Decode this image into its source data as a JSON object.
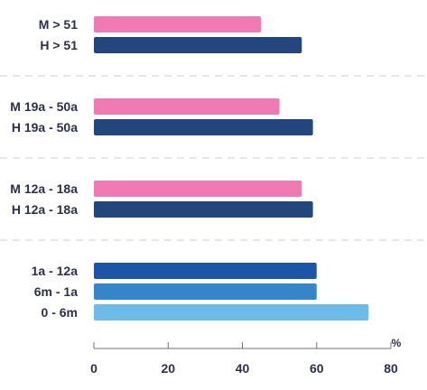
{
  "chart_data": {
    "type": "bar",
    "orientation": "horizontal",
    "unit": "%",
    "xlim": [
      0,
      80
    ],
    "ticks": [
      "0",
      "20",
      "40",
      "60",
      "80"
    ],
    "tick_values": [
      0,
      20,
      40,
      60,
      80
    ],
    "grid": false,
    "legend": "none",
    "groups": [
      {
        "bars": [
          {
            "label": "M > 51",
            "value": 45,
            "color": "#f07ab3"
          },
          {
            "label": "H > 51",
            "value": 56,
            "color": "#24467f"
          }
        ]
      },
      {
        "bars": [
          {
            "label": "M 19a - 50a",
            "value": 50,
            "color": "#f07ab3"
          },
          {
            "label": "H 19a - 50a",
            "value": 59,
            "color": "#24467f"
          }
        ]
      },
      {
        "bars": [
          {
            "label": "M 12a - 18a",
            "value": 56,
            "color": "#f07ab3"
          },
          {
            "label": "H 12a - 18a",
            "value": 59,
            "color": "#24467f"
          }
        ]
      },
      {
        "bars": [
          {
            "label": "1a - 12a",
            "value": 60,
            "color": "#1c54a8"
          },
          {
            "label": "6m - 1a",
            "value": 60,
            "color": "#3586c9"
          },
          {
            "label": "0 - 6m",
            "value": 74,
            "color": "#6cbbe8"
          }
        ]
      }
    ]
  }
}
